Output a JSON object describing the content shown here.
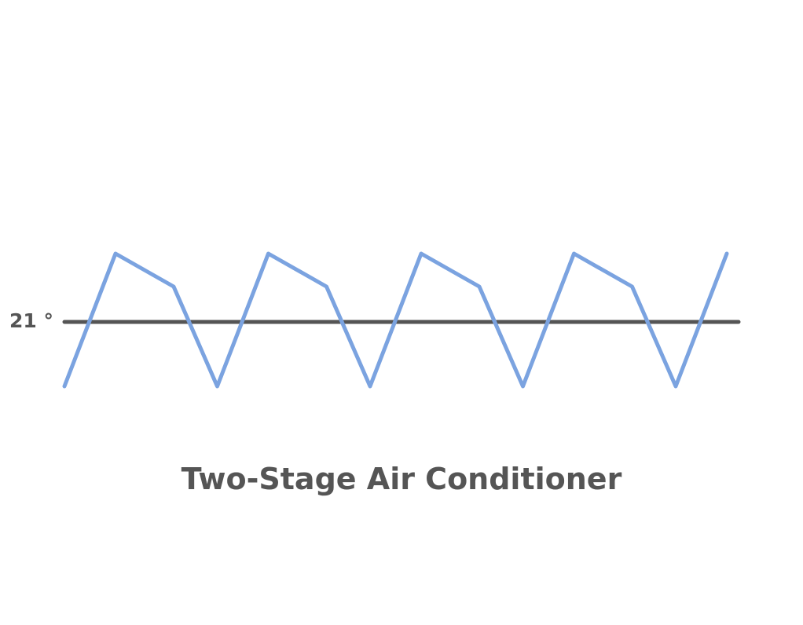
{
  "diagram": {
    "title": "Two-Stage Air Conditioner",
    "setpoint_label": "21 °",
    "cycles": 4,
    "colors": {
      "temperature_line": "#7BA3E0",
      "setpoint_line": "#555555",
      "text": "#555555"
    }
  }
}
